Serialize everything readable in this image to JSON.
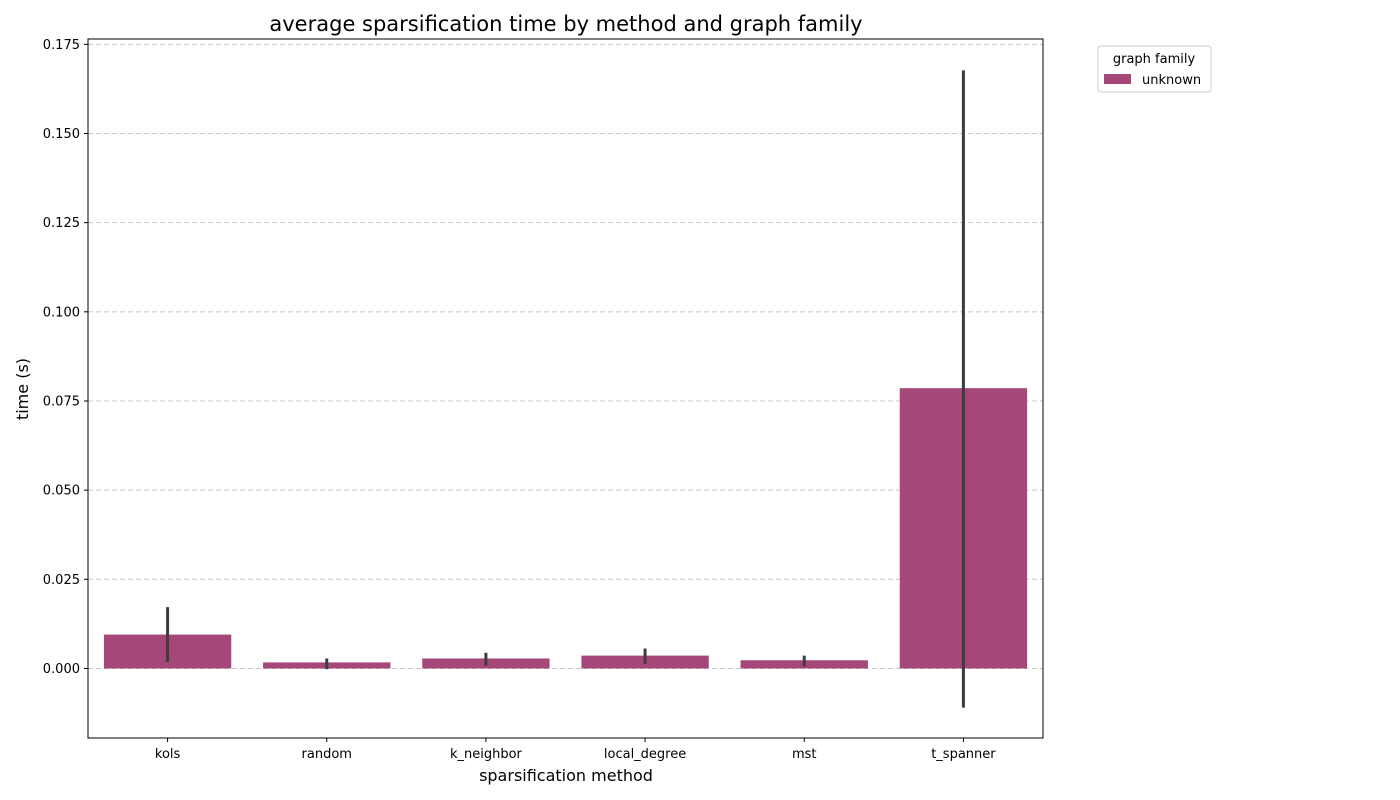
{
  "chart_data": {
    "type": "bar",
    "title": "average sparsification time by method and graph family",
    "xlabel": "sparsification method",
    "ylabel": "time (s)",
    "categories": [
      "kols",
      "random",
      "k_neighbor",
      "local_degree",
      "mst",
      "t_spanner"
    ],
    "series": [
      {
        "name": "unknown",
        "values": [
          0.0095,
          0.0017,
          0.0028,
          0.0036,
          0.0023,
          0.0786
        ],
        "error_low": [
          0.0018,
          -0.0002,
          0.0008,
          0.0013,
          0.0006,
          -0.011
        ],
        "error_high": [
          0.0172,
          0.0028,
          0.0044,
          0.0056,
          0.0036,
          0.1677
        ]
      }
    ],
    "ylim": [
      -0.0195,
      0.1765
    ],
    "yticks": [
      0.0,
      0.025,
      0.05,
      0.075,
      0.1,
      0.125,
      0.15,
      0.175
    ],
    "ytick_labels": [
      "0.000",
      "0.025",
      "0.050",
      "0.075",
      "0.100",
      "0.125",
      "0.150",
      "0.175"
    ],
    "grid": "y-dashed",
    "legend": {
      "title": "graph family",
      "placement": "outside-top-right"
    },
    "colors": {
      "bar": "#a64779",
      "error_bar": "#3d3d3d",
      "grid": "#c8c8c8"
    }
  }
}
